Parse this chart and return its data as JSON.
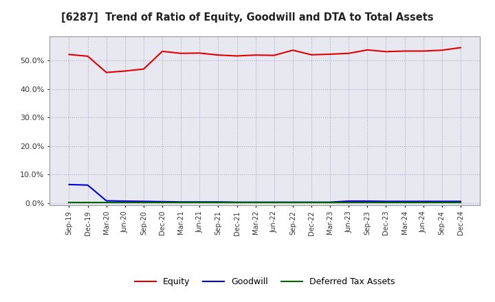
{
  "title": "[6287]  Trend of Ratio of Equity, Goodwill and DTA to Total Assets",
  "x_labels": [
    "Sep-19",
    "Dec-19",
    "Mar-20",
    "Jun-20",
    "Sep-20",
    "Dec-20",
    "Mar-21",
    "Jun-21",
    "Sep-21",
    "Dec-21",
    "Mar-22",
    "Jun-22",
    "Sep-22",
    "Dec-22",
    "Mar-23",
    "Jun-23",
    "Sep-23",
    "Dec-23",
    "Mar-24",
    "Jun-24",
    "Sep-24",
    "Dec-24"
  ],
  "equity": [
    0.521,
    0.515,
    0.458,
    0.463,
    0.47,
    0.532,
    0.525,
    0.526,
    0.519,
    0.516,
    0.519,
    0.518,
    0.536,
    0.52,
    0.522,
    0.525,
    0.537,
    0.531,
    0.533,
    0.533,
    0.536,
    0.545
  ],
  "goodwill": [
    0.065,
    0.063,
    0.008,
    0.007,
    0.006,
    0.005,
    0.004,
    0.004,
    0.004,
    0.003,
    0.003,
    0.003,
    0.003,
    0.003,
    0.003,
    0.007,
    0.007,
    0.006,
    0.006,
    0.006,
    0.006,
    0.006
  ],
  "dta": [
    0.001,
    0.001,
    0.001,
    0.001,
    0.001,
    0.001,
    0.001,
    0.001,
    0.001,
    0.001,
    0.001,
    0.001,
    0.001,
    0.001,
    0.001,
    0.001,
    0.001,
    0.001,
    0.001,
    0.001,
    0.001,
    0.001
  ],
  "equity_color": "#dd0000",
  "goodwill_color": "#0000cc",
  "dta_color": "#006600",
  "ylim": [
    -0.008,
    0.585
  ],
  "yticks": [
    0.0,
    0.1,
    0.2,
    0.3,
    0.4,
    0.5
  ],
  "background_color": "#ffffff",
  "plot_bg_color": "#e8e8f0",
  "grid_color": "#aaaacc",
  "title_color": "#222222",
  "legend_labels": [
    "Equity",
    "Goodwill",
    "Deferred Tax Assets"
  ]
}
